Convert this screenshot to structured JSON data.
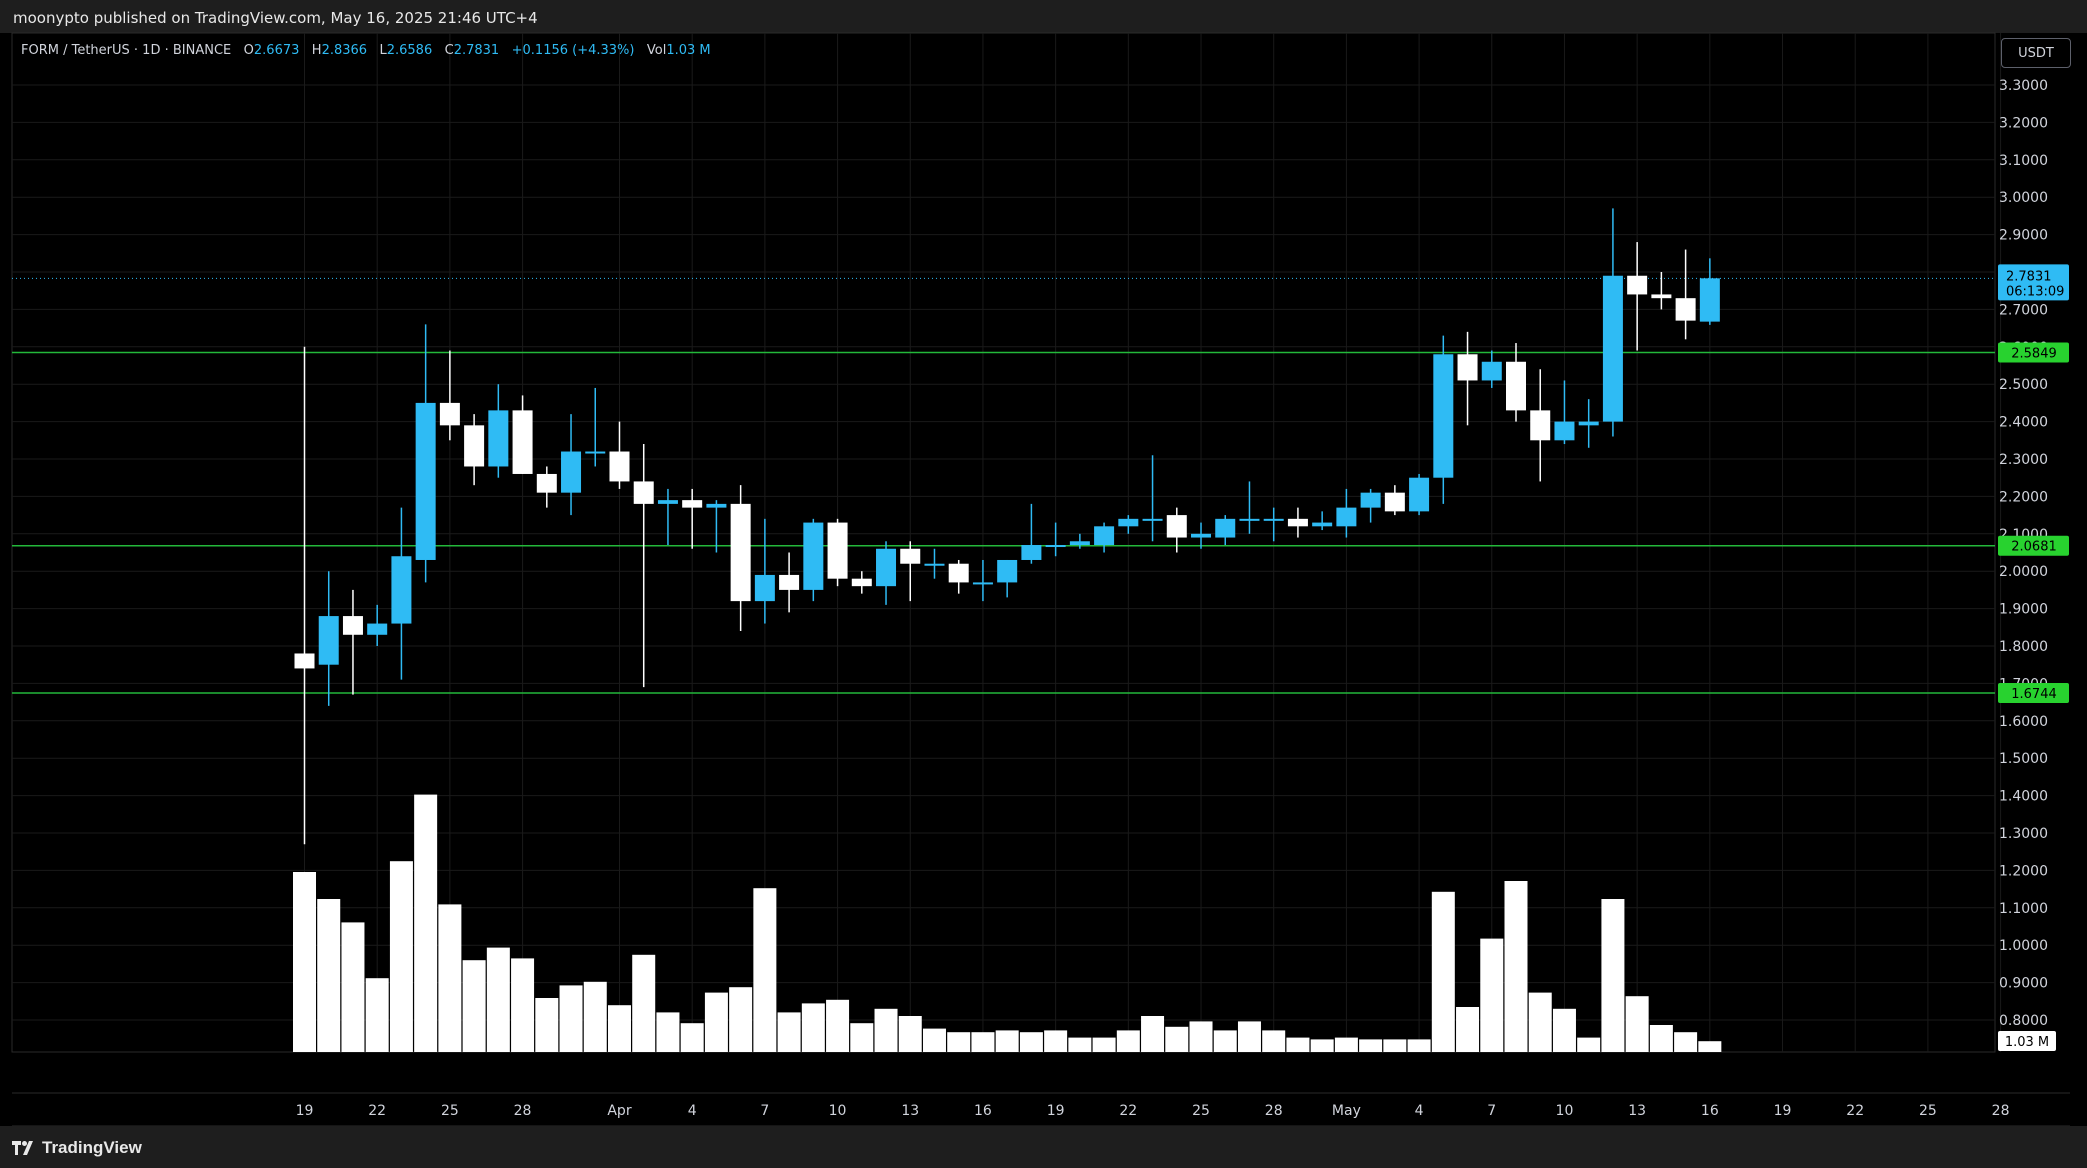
{
  "header": {
    "published": "moonypto published on TradingView.com, May 16, 2025 21:46 UTC+4"
  },
  "legend": {
    "symbol": "FORM / TetherUS · 1D · BINANCE",
    "o_label": "O",
    "o": "2.6673",
    "h_label": "H",
    "h": "2.8366",
    "l_label": "L",
    "l": "2.6586",
    "c_label": "C",
    "c": "2.7831",
    "change": "+0.1156 (+4.33%)",
    "vol_label": "Vol",
    "vol": "1.03 M"
  },
  "currency_button": "USDT",
  "footer": {
    "logo_text": "TradingView"
  },
  "colors": {
    "up": "#2fbbf4",
    "down": "#ffffff",
    "level_line": "#23b83a",
    "level_badge": "#28d22f",
    "last_price_badge": "#2fbbf4",
    "grid": "#1a1a1a"
  },
  "chart_data": {
    "type": "candlestick",
    "ylim": [
      1.2,
      3.35
    ],
    "price_ticks": [
      "3.3000",
      "3.2000",
      "3.1000",
      "3.0000",
      "2.9000",
      "2.8000",
      "2.7000",
      "2.6000",
      "2.5000",
      "2.4000",
      "2.3000",
      "2.2000",
      "2.1000",
      "2.0000",
      "1.9000",
      "1.8000",
      "1.7000",
      "1.6000",
      "1.5000",
      "1.4000",
      "1.3000",
      "1.2000",
      "1.1000",
      "1.0000",
      "0.9000",
      "0.8000"
    ],
    "x_ticks": [
      {
        "label": "19",
        "date": "2025-03-19"
      },
      {
        "label": "22",
        "date": "2025-03-22"
      },
      {
        "label": "25",
        "date": "2025-03-25"
      },
      {
        "label": "28",
        "date": "2025-03-28"
      },
      {
        "label": "Apr",
        "date": "2025-04-01"
      },
      {
        "label": "4",
        "date": "2025-04-04"
      },
      {
        "label": "7",
        "date": "2025-04-07"
      },
      {
        "label": "10",
        "date": "2025-04-10"
      },
      {
        "label": "13",
        "date": "2025-04-13"
      },
      {
        "label": "16",
        "date": "2025-04-16"
      },
      {
        "label": "19",
        "date": "2025-04-19"
      },
      {
        "label": "22",
        "date": "2025-04-22"
      },
      {
        "label": "25",
        "date": "2025-04-25"
      },
      {
        "label": "28",
        "date": "2025-04-28"
      },
      {
        "label": "May",
        "date": "2025-05-01"
      },
      {
        "label": "4",
        "date": "2025-05-04"
      },
      {
        "label": "7",
        "date": "2025-05-07"
      },
      {
        "label": "10",
        "date": "2025-05-10"
      },
      {
        "label": "13",
        "date": "2025-05-13"
      },
      {
        "label": "16",
        "date": "2025-05-16"
      },
      {
        "label": "19",
        "date": "2025-05-19"
      },
      {
        "label": "22",
        "date": "2025-05-22"
      },
      {
        "label": "25",
        "date": "2025-05-25"
      },
      {
        "label": "28",
        "date": "2025-05-28"
      }
    ],
    "levels": [
      {
        "price": 2.5849,
        "label": "2.5849"
      },
      {
        "price": 2.0681,
        "label": "2.0681"
      },
      {
        "price": 1.6744,
        "label": "1.6744"
      }
    ],
    "last_price": {
      "price": 2.7831,
      "label": "2.7831",
      "countdown": "06:13:09"
    },
    "volume_label": "1.03 M",
    "candles": [
      {
        "date": "2025-03-19",
        "o": 1.78,
        "h": 2.6,
        "l": 1.27,
        "c": 1.74,
        "v": 1.0
      },
      {
        "date": "2025-03-20",
        "o": 1.75,
        "h": 2.0,
        "l": 1.64,
        "c": 1.88,
        "v": 0.85
      },
      {
        "date": "2025-03-21",
        "o": 1.88,
        "h": 1.95,
        "l": 1.67,
        "c": 1.83,
        "v": 0.72
      },
      {
        "date": "2025-03-22",
        "o": 1.83,
        "h": 1.91,
        "l": 1.8,
        "c": 1.86,
        "v": 0.41
      },
      {
        "date": "2025-03-23",
        "o": 1.86,
        "h": 2.17,
        "l": 1.71,
        "c": 2.04,
        "v": 1.06
      },
      {
        "date": "2025-03-24",
        "o": 2.03,
        "h": 2.66,
        "l": 1.97,
        "c": 2.45,
        "v": 1.43
      },
      {
        "date": "2025-03-25",
        "o": 2.45,
        "h": 2.59,
        "l": 2.35,
        "c": 2.39,
        "v": 0.82
      },
      {
        "date": "2025-03-26",
        "o": 2.39,
        "h": 2.42,
        "l": 2.23,
        "c": 2.28,
        "v": 0.51
      },
      {
        "date": "2025-03-27",
        "o": 2.28,
        "h": 2.5,
        "l": 2.25,
        "c": 2.43,
        "v": 0.58
      },
      {
        "date": "2025-03-28",
        "o": 2.43,
        "h": 2.47,
        "l": 2.26,
        "c": 2.26,
        "v": 0.52
      },
      {
        "date": "2025-03-29",
        "o": 2.26,
        "h": 2.28,
        "l": 2.17,
        "c": 2.21,
        "v": 0.3
      },
      {
        "date": "2025-03-30",
        "o": 2.21,
        "h": 2.42,
        "l": 2.15,
        "c": 2.32,
        "v": 0.37
      },
      {
        "date": "2025-03-31",
        "o": 2.32,
        "h": 2.49,
        "l": 2.28,
        "c": 2.32,
        "v": 0.39
      },
      {
        "date": "2025-04-01",
        "o": 2.32,
        "h": 2.4,
        "l": 2.22,
        "c": 2.24,
        "v": 0.26
      },
      {
        "date": "2025-04-02",
        "o": 2.24,
        "h": 2.34,
        "l": 1.69,
        "c": 2.18,
        "v": 0.54
      },
      {
        "date": "2025-04-03",
        "o": 2.18,
        "h": 2.22,
        "l": 2.07,
        "c": 2.19,
        "v": 0.22
      },
      {
        "date": "2025-04-04",
        "o": 2.19,
        "h": 2.22,
        "l": 2.06,
        "c": 2.17,
        "v": 0.16
      },
      {
        "date": "2025-04-05",
        "o": 2.17,
        "h": 2.19,
        "l": 2.05,
        "c": 2.18,
        "v": 0.33
      },
      {
        "date": "2025-04-06",
        "o": 2.18,
        "h": 2.23,
        "l": 1.84,
        "c": 1.92,
        "v": 0.36
      },
      {
        "date": "2025-04-07",
        "o": 1.92,
        "h": 2.14,
        "l": 1.86,
        "c": 1.99,
        "v": 0.91
      },
      {
        "date": "2025-04-08",
        "o": 1.99,
        "h": 2.05,
        "l": 1.89,
        "c": 1.95,
        "v": 0.22
      },
      {
        "date": "2025-04-09",
        "o": 1.95,
        "h": 2.14,
        "l": 1.92,
        "c": 2.13,
        "v": 0.27
      },
      {
        "date": "2025-04-10",
        "o": 2.13,
        "h": 2.14,
        "l": 1.96,
        "c": 1.98,
        "v": 0.29
      },
      {
        "date": "2025-04-11",
        "o": 1.98,
        "h": 2.0,
        "l": 1.94,
        "c": 1.96,
        "v": 0.16
      },
      {
        "date": "2025-04-12",
        "o": 1.96,
        "h": 2.08,
        "l": 1.91,
        "c": 2.06,
        "v": 0.24
      },
      {
        "date": "2025-04-13",
        "o": 2.06,
        "h": 2.08,
        "l": 1.92,
        "c": 2.02,
        "v": 0.2
      },
      {
        "date": "2025-04-14",
        "o": 2.02,
        "h": 2.06,
        "l": 1.98,
        "c": 2.02,
        "v": 0.13
      },
      {
        "date": "2025-04-15",
        "o": 2.02,
        "h": 2.03,
        "l": 1.94,
        "c": 1.97,
        "v": 0.11
      },
      {
        "date": "2025-04-16",
        "o": 1.97,
        "h": 2.03,
        "l": 1.92,
        "c": 1.97,
        "v": 0.11
      },
      {
        "date": "2025-04-17",
        "o": 1.97,
        "h": 2.03,
        "l": 1.93,
        "c": 2.03,
        "v": 0.12
      },
      {
        "date": "2025-04-18",
        "o": 2.03,
        "h": 2.18,
        "l": 2.02,
        "c": 2.07,
        "v": 0.11
      },
      {
        "date": "2025-04-19",
        "o": 2.07,
        "h": 2.13,
        "l": 2.04,
        "c": 2.07,
        "v": 0.12
      },
      {
        "date": "2025-04-20",
        "o": 2.07,
        "h": 2.1,
        "l": 2.06,
        "c": 2.08,
        "v": 0.08
      },
      {
        "date": "2025-04-21",
        "o": 2.07,
        "h": 2.13,
        "l": 2.05,
        "c": 2.12,
        "v": 0.08
      },
      {
        "date": "2025-04-22",
        "o": 2.12,
        "h": 2.15,
        "l": 2.1,
        "c": 2.14,
        "v": 0.12
      },
      {
        "date": "2025-04-23",
        "o": 2.14,
        "h": 2.31,
        "l": 2.08,
        "c": 2.14,
        "v": 0.2
      },
      {
        "date": "2025-04-24",
        "o": 2.15,
        "h": 2.17,
        "l": 2.05,
        "c": 2.09,
        "v": 0.14
      },
      {
        "date": "2025-04-25",
        "o": 2.09,
        "h": 2.13,
        "l": 2.06,
        "c": 2.1,
        "v": 0.17
      },
      {
        "date": "2025-04-26",
        "o": 2.09,
        "h": 2.15,
        "l": 2.07,
        "c": 2.14,
        "v": 0.12
      },
      {
        "date": "2025-04-27",
        "o": 2.14,
        "h": 2.24,
        "l": 2.1,
        "c": 2.14,
        "v": 0.17
      },
      {
        "date": "2025-04-28",
        "o": 2.14,
        "h": 2.17,
        "l": 2.08,
        "c": 2.14,
        "v": 0.12
      },
      {
        "date": "2025-04-29",
        "o": 2.14,
        "h": 2.17,
        "l": 2.09,
        "c": 2.12,
        "v": 0.08
      },
      {
        "date": "2025-04-30",
        "o": 2.12,
        "h": 2.16,
        "l": 2.11,
        "c": 2.13,
        "v": 0.07
      },
      {
        "date": "2025-05-01",
        "o": 2.12,
        "h": 2.22,
        "l": 2.09,
        "c": 2.17,
        "v": 0.08
      },
      {
        "date": "2025-05-02",
        "o": 2.17,
        "h": 2.22,
        "l": 2.13,
        "c": 2.21,
        "v": 0.07
      },
      {
        "date": "2025-05-03",
        "o": 2.21,
        "h": 2.23,
        "l": 2.15,
        "c": 2.16,
        "v": 0.07
      },
      {
        "date": "2025-05-04",
        "o": 2.16,
        "h": 2.26,
        "l": 2.15,
        "c": 2.25,
        "v": 0.07
      },
      {
        "date": "2025-05-05",
        "o": 2.25,
        "h": 2.63,
        "l": 2.18,
        "c": 2.58,
        "v": 0.89
      },
      {
        "date": "2025-05-06",
        "o": 2.58,
        "h": 2.64,
        "l": 2.39,
        "c": 2.51,
        "v": 0.25
      },
      {
        "date": "2025-05-07",
        "o": 2.51,
        "h": 2.59,
        "l": 2.49,
        "c": 2.56,
        "v": 0.63
      },
      {
        "date": "2025-05-08",
        "o": 2.56,
        "h": 2.61,
        "l": 2.4,
        "c": 2.43,
        "v": 0.95
      },
      {
        "date": "2025-05-09",
        "o": 2.43,
        "h": 2.54,
        "l": 2.24,
        "c": 2.35,
        "v": 0.33
      },
      {
        "date": "2025-05-10",
        "o": 2.35,
        "h": 2.51,
        "l": 2.34,
        "c": 2.4,
        "v": 0.24
      },
      {
        "date": "2025-05-11",
        "o": 2.39,
        "h": 2.46,
        "l": 2.33,
        "c": 2.4,
        "v": 0.08
      },
      {
        "date": "2025-05-12",
        "o": 2.4,
        "h": 2.97,
        "l": 2.36,
        "c": 2.79,
        "v": 0.85
      },
      {
        "date": "2025-05-13",
        "o": 2.79,
        "h": 2.88,
        "l": 2.59,
        "c": 2.74,
        "v": 0.31
      },
      {
        "date": "2025-05-14",
        "o": 2.74,
        "h": 2.8,
        "l": 2.7,
        "c": 2.73,
        "v": 0.15
      },
      {
        "date": "2025-05-15",
        "o": 2.73,
        "h": 2.86,
        "l": 2.62,
        "c": 2.67,
        "v": 0.11
      },
      {
        "date": "2025-05-16",
        "o": 2.6673,
        "h": 2.8366,
        "l": 2.6586,
        "c": 2.7831,
        "v": 0.06
      }
    ]
  }
}
